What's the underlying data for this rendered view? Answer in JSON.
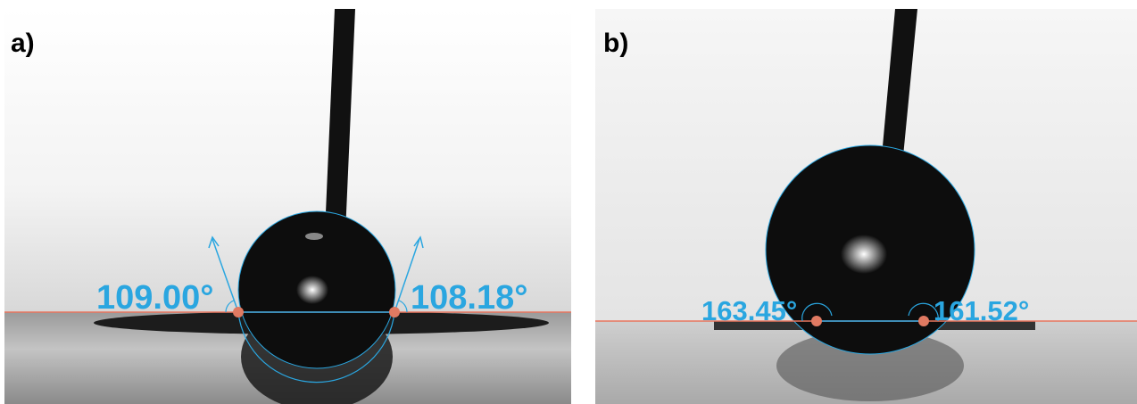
{
  "panels": [
    {
      "label": "a)",
      "left_angle": "109.00°",
      "right_angle": "108.18°"
    },
    {
      "label": "b)",
      "left_angle": "163.45°",
      "right_angle": "161.52°"
    }
  ]
}
